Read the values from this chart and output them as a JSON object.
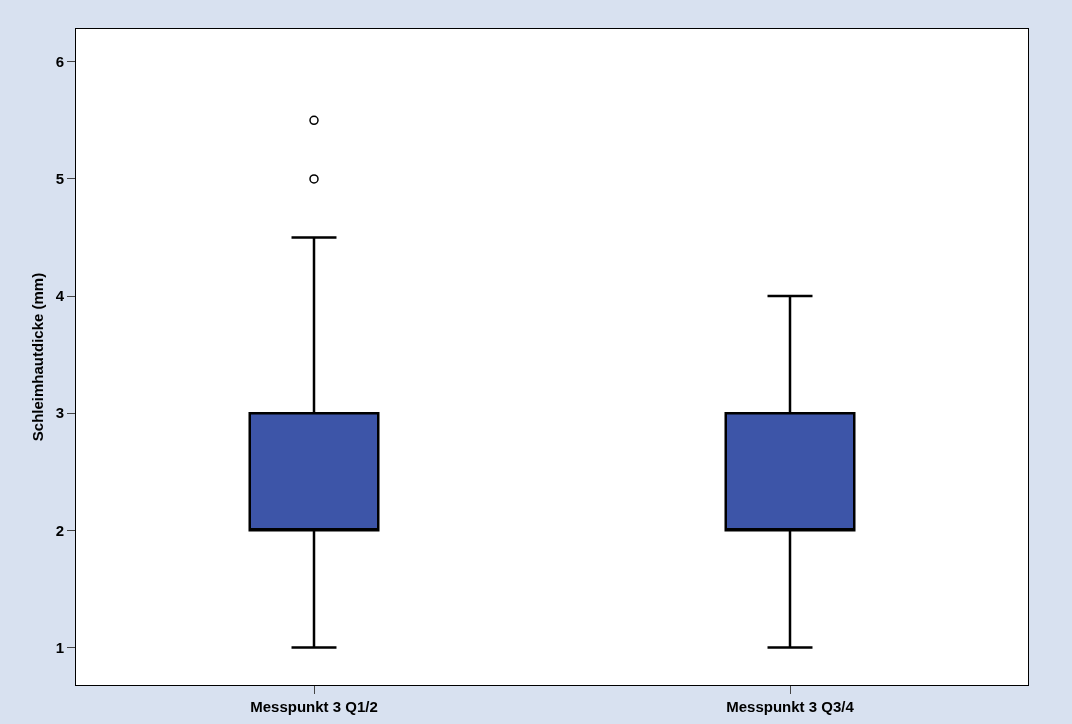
{
  "chart_data": {
    "type": "box",
    "ylabel": "Schleimhautdicke (mm)",
    "categories": [
      "Messpunkt 3 Q1/2",
      "Messpunkt 3 Q3/4"
    ],
    "series": [
      {
        "color": "#3d55a8",
        "boxes": [
          {
            "low": 1,
            "q1": 2,
            "median": 2,
            "q3": 3,
            "high": 4.5,
            "outliers": [
              5,
              5.5
            ]
          },
          {
            "low": 1,
            "q1": 2,
            "median": 2,
            "q3": 3,
            "high": 4
          }
        ]
      }
    ],
    "ylim": [
      0.68,
      6.28
    ],
    "yticks": [
      1,
      2,
      3,
      4,
      5,
      6
    ]
  }
}
